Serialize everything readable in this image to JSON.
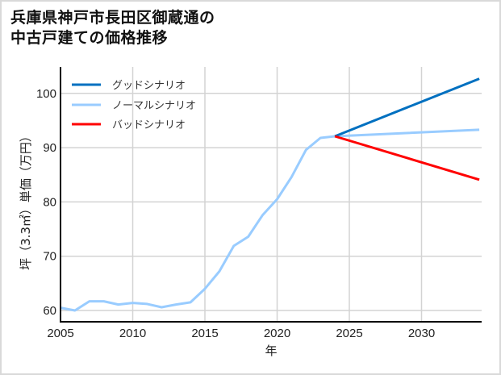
{
  "title": {
    "line1": "兵庫県神戸市長田区御蔵通の",
    "line2": "中古戸建ての価格推移"
  },
  "chart_data": {
    "type": "line",
    "title": "兵庫県神戸市長田区御蔵通の中古戸建ての価格推移",
    "xlabel": "年",
    "ylabel": "坪（3.3㎡）単価（万円）",
    "xlim": [
      2005,
      2034
    ],
    "ylim": [
      58,
      105
    ],
    "xticks": [
      2005,
      2010,
      2015,
      2020,
      2025,
      2030
    ],
    "yticks": [
      60,
      70,
      80,
      90,
      100
    ],
    "grid": true,
    "legend_position": "upper left",
    "series": [
      {
        "name": "グッドシナリオ",
        "color": "#0070c0",
        "x": [
          2024,
          2034
        ],
        "y": [
          92.1,
          102.7
        ]
      },
      {
        "name": "ノーマルシナリオ",
        "color": "#99ccff",
        "x": [
          2005,
          2006,
          2007,
          2008,
          2009,
          2010,
          2011,
          2012,
          2013,
          2014,
          2015,
          2016,
          2017,
          2018,
          2019,
          2020,
          2021,
          2022,
          2023,
          2024,
          2034
        ],
        "y": [
          60.5,
          60.0,
          61.7,
          61.7,
          61.1,
          61.4,
          61.2,
          60.6,
          61.1,
          61.5,
          64.0,
          67.2,
          71.9,
          73.6,
          77.6,
          80.5,
          84.6,
          89.6,
          91.8,
          92.1,
          93.3
        ]
      },
      {
        "name": "バッドシナリオ",
        "color": "#ff0000",
        "x": [
          2024,
          2034
        ],
        "y": [
          92.1,
          84.1
        ]
      }
    ]
  }
}
